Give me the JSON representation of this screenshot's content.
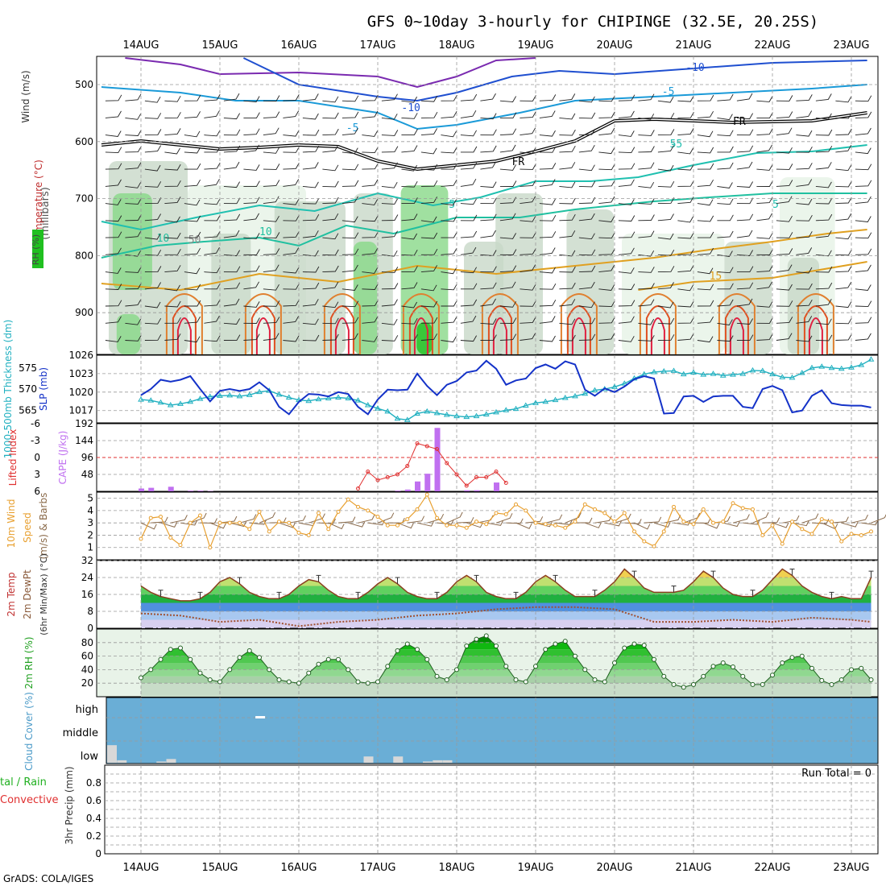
{
  "title": "GFS 0~10day 3-hourly for CHIPINGE (32.5E, 20.25S)",
  "footer": "GrADS: COLA/IGES",
  "dates": [
    "14AUG",
    "15AUG",
    "16AUG",
    "17AUG",
    "18AUG",
    "19AUG",
    "20AUG",
    "21AUG",
    "22AUG",
    "23AUG"
  ],
  "colors": {
    "temp_contour_cold": "#1f4fd0",
    "temp_contour_cool": "#1a9ad8",
    "temp_contour_mild": "#20c0b0",
    "temp_contour_warm": "#e0a020",
    "temp_contour_hot": "#e05020",
    "rh_light": "#e6f3e6",
    "rh_mid": "#88d888",
    "rh_high": "#20c020",
    "slp_line": "#1432c8",
    "thickness_line": "#20b0c0",
    "cape_bar": "#c070f0",
    "lifted_index_line": "#e03030",
    "wind_speed_line": "#e8a030",
    "barb_color": "#8a6a4a",
    "cloud_bg": "#6aaed6",
    "cloud_gray": "#d8d8d8"
  },
  "panels": {
    "upper": {
      "ylabel_wind": "Wind (m/s)",
      "ylabel_temp": "Temperature (°C)",
      "ylabel_rh": "RH (%)",
      "ylabel_units": "(millibars)",
      "yticks": [
        "500",
        "600",
        "700",
        "800",
        "900"
      ],
      "contour_labels": [
        "-10",
        "-10",
        "-5",
        "-5",
        "-5",
        "5",
        "5",
        "10",
        "15",
        "FR",
        "FR",
        "50",
        "5",
        "10"
      ]
    },
    "slp": {
      "ylabel_left": "1000-500mb Thickness (dm)",
      "ylabel_right": "SLP (mb)",
      "left_ticks": [
        "575",
        "570",
        "565"
      ],
      "right_ticks": [
        "1026",
        "1023",
        "1020",
        "1017"
      ]
    },
    "cape": {
      "ylabel_left": "Lifted Index",
      "ylabel_right": "CAPE (J/kg)",
      "left_ticks": [
        "-6",
        "-3",
        "0",
        "3",
        "6"
      ],
      "right_ticks": [
        "192",
        "144",
        "96",
        "48"
      ]
    },
    "wind10m": {
      "ylabel": "10m Wind Speed (m/s) & Barbs",
      "ylabel_lines": [
        "10m Wind",
        "Speed",
        "(m/s) & Barbs"
      ],
      "yticks": [
        "5",
        "4",
        "3",
        "2",
        "1"
      ]
    },
    "temp2m": {
      "ylabel_lines": [
        "2m Temp",
        "2m DewPt",
        "(6hr Min/Max) (°C)"
      ],
      "yticks": [
        "32",
        "24",
        "16",
        "8",
        "0"
      ]
    },
    "rh2m": {
      "ylabel": "2m RH (%)",
      "yticks": [
        "80",
        "60",
        "40",
        "20"
      ]
    },
    "cloud": {
      "ylabel": "Cloud Cover (%)",
      "levels": [
        "high",
        "middle",
        "low"
      ]
    },
    "precip": {
      "ylabel_left_green": "tal / Rain",
      "ylabel_left_red": "Convective",
      "ylabel": "3hr Precip (mm)",
      "yticks": [
        "0.8",
        "0.6",
        "0.4",
        "0.2",
        "0"
      ],
      "run_total": "Run Total = 0"
    }
  },
  "chart_data": [
    {
      "type": "line",
      "name": "SLP (mb)",
      "x_days": [
        0.0,
        0.125,
        0.25,
        0.375,
        0.5,
        0.625,
        0.75,
        0.875,
        1.0,
        1.125,
        1.25,
        1.375,
        1.5,
        1.625,
        1.75,
        1.875,
        2.0,
        2.125,
        2.25,
        2.375,
        2.5,
        2.625,
        2.75,
        2.875,
        3.0,
        3.125,
        3.25,
        3.375,
        3.5,
        3.625,
        3.75,
        3.875,
        4.0,
        4.125,
        4.25,
        4.375,
        4.5,
        4.625,
        4.75,
        4.875,
        5.0,
        5.125,
        5.25,
        5.375,
        5.5,
        5.625,
        5.75,
        5.875,
        6.0,
        6.125,
        6.25,
        6.375,
        6.5,
        6.625,
        6.75,
        6.875,
        7.0,
        7.125,
        7.25,
        7.375,
        7.5,
        7.625,
        7.75,
        7.875,
        8.0,
        8.125,
        8.25,
        8.375,
        8.5,
        8.625,
        8.75,
        8.875,
        9.0,
        9.125,
        9.25
      ],
      "values": [
        1019.5,
        1020.5,
        1022.0,
        1021.7,
        1022.0,
        1022.6,
        1020.5,
        1018.5,
        1020.2,
        1020.5,
        1020.2,
        1020.5,
        1021.6,
        1020.3,
        1017.6,
        1016.4,
        1018.4,
        1019.7,
        1019.6,
        1019.3,
        1020.0,
        1019.7,
        1017.6,
        1016.4,
        1018.8,
        1020.4,
        1020.3,
        1020.4,
        1023.0,
        1021.0,
        1019.5,
        1021.2,
        1021.8,
        1023.2,
        1023.5,
        1025.1,
        1023.8,
        1021.2,
        1021.9,
        1022.2,
        1023.9,
        1024.5,
        1023.8,
        1025.0,
        1024.5,
        1020.4,
        1019.4,
        1020.6,
        1020.0,
        1020.9,
        1022.1,
        1022.6,
        1022.2,
        1016.5,
        1016.6,
        1019.3,
        1019.4,
        1018.4,
        1019.3,
        1019.4,
        1019.4,
        1017.6,
        1017.4,
        1020.5,
        1021.0,
        1020.3,
        1016.7,
        1017.0,
        1019.4,
        1020.3,
        1018.2,
        1017.9,
        1017.8,
        1017.8,
        1017.5
      ],
      "ylim": [
        1015,
        1026
      ]
    },
    {
      "type": "line",
      "name": "1000-500mb Thickness (dm)",
      "x_days": [
        0.0,
        0.125,
        0.25,
        0.375,
        0.5,
        0.625,
        0.75,
        0.875,
        1.0,
        1.125,
        1.25,
        1.375,
        1.5,
        1.625,
        1.75,
        1.875,
        2.0,
        2.125,
        2.25,
        2.375,
        2.5,
        2.625,
        2.75,
        2.875,
        3.0,
        3.125,
        3.25,
        3.375,
        3.5,
        3.625,
        3.75,
        3.875,
        4.0,
        4.125,
        4.25,
        4.375,
        4.5,
        4.625,
        4.75,
        4.875,
        5.0,
        5.125,
        5.25,
        5.375,
        5.5,
        5.625,
        5.75,
        5.875,
        6.0,
        6.125,
        6.25,
        6.375,
        6.5,
        6.625,
        6.75,
        6.875,
        7.0,
        7.125,
        7.25,
        7.375,
        7.5,
        7.625,
        7.75,
        7.875,
        8.0,
        8.125,
        8.25,
        8.375,
        8.5,
        8.625,
        8.75,
        8.875,
        9.0,
        9.125,
        9.25
      ],
      "values": [
        567.5,
        567.3,
        566.8,
        566.2,
        566.5,
        567.0,
        567.7,
        568.2,
        568.4,
        568.5,
        568.3,
        568.6,
        569.3,
        569.6,
        568.7,
        568.0,
        567.4,
        567.2,
        567.6,
        567.8,
        568.0,
        567.8,
        567.3,
        566.2,
        565.4,
        564.7,
        563.0,
        562.7,
        564.2,
        564.7,
        564.3,
        563.9,
        563.6,
        563.4,
        563.6,
        564.0,
        564.5,
        565.0,
        565.3,
        566.1,
        566.7,
        567.0,
        567.4,
        567.9,
        568.3,
        568.9,
        569.7,
        570.0,
        570.5,
        571.3,
        572.5,
        573.5,
        574.0,
        574.2,
        574.3,
        573.5,
        573.9,
        573.4,
        573.6,
        573.2,
        573.4,
        573.6,
        574.4,
        574.3,
        573.5,
        572.8,
        572.7,
        573.8,
        575.0,
        575.3,
        575.0,
        574.8,
        575.1,
        575.7,
        577.0
      ],
      "ylim": [
        562,
        578
      ]
    },
    {
      "type": "bar",
      "name": "CAPE (J/kg)",
      "x_days": [
        0.0,
        0.125,
        0.375,
        0.625,
        0.75,
        0.875,
        3.25,
        3.375,
        3.5,
        3.625,
        3.75,
        4.125,
        4.25,
        4.5
      ],
      "values": [
        8,
        10,
        13,
        2,
        2,
        1,
        2,
        5,
        28,
        50,
        180,
        3,
        3,
        25
      ],
      "ylim": [
        0,
        192
      ]
    },
    {
      "type": "line",
      "name": "Lifted Index",
      "x_days": [
        2.75,
        2.875,
        3.0,
        3.125,
        3.25,
        3.375,
        3.5,
        3.625,
        3.75,
        3.875,
        4.0,
        4.125,
        4.25,
        4.375,
        4.5,
        4.625
      ],
      "values": [
        5.5,
        2.5,
        4.0,
        3.5,
        3.0,
        1.5,
        -2.5,
        -2.0,
        -1.5,
        1.0,
        3.0,
        5.0,
        3.5,
        3.5,
        2.5,
        4.5
      ],
      "ylim": [
        6,
        -6
      ]
    },
    {
      "type": "line",
      "name": "10m Wind Speed (m/s)",
      "x_days": [
        0.0,
        0.125,
        0.25,
        0.375,
        0.5,
        0.625,
        0.75,
        0.875,
        1.0,
        1.125,
        1.25,
        1.375,
        1.5,
        1.625,
        1.75,
        1.875,
        2.0,
        2.125,
        2.25,
        2.375,
        2.5,
        2.625,
        2.75,
        2.875,
        3.0,
        3.125,
        3.25,
        3.375,
        3.5,
        3.625,
        3.75,
        3.875,
        4.0,
        4.125,
        4.25,
        4.375,
        4.5,
        4.625,
        4.75,
        4.875,
        5.0,
        5.125,
        5.25,
        5.375,
        5.5,
        5.625,
        5.75,
        5.875,
        6.0,
        6.125,
        6.25,
        6.375,
        6.5,
        6.625,
        6.75,
        6.875,
        7.0,
        7.125,
        7.25,
        7.375,
        7.5,
        7.625,
        7.75,
        7.875,
        8.0,
        8.125,
        8.25,
        8.375,
        8.5,
        8.625,
        8.75,
        8.875,
        9.0,
        9.125,
        9.25
      ],
      "values": [
        1.7,
        3.4,
        3.5,
        1.8,
        1.2,
        3.0,
        3.6,
        1.0,
        3.0,
        3.0,
        3.0,
        2.5,
        3.9,
        2.3,
        3.1,
        3.0,
        2.2,
        2.0,
        3.8,
        2.5,
        3.9,
        4.9,
        4.3,
        4.0,
        3.5,
        2.8,
        2.8,
        3.3,
        4.1,
        5.3,
        3.4,
        2.8,
        2.8,
        2.6,
        3.1,
        2.9,
        3.8,
        3.7,
        4.5,
        4.0,
        3.0,
        2.9,
        2.8,
        2.6,
        3.1,
        4.5,
        4.1,
        3.8,
        3.1,
        3.8,
        2.3,
        1.5,
        1.1,
        2.3,
        4.3,
        3.1,
        2.9,
        4.1,
        3.0,
        3.1,
        4.6,
        4.2,
        4.1,
        2.0,
        2.8,
        1.3,
        3.1,
        2.5,
        2.1,
        3.3,
        3.1,
        1.5,
        2.1,
        2.0,
        2.3
      ],
      "ylim": [
        0,
        5.5
      ]
    },
    {
      "type": "area",
      "name": "2m Temp (°C)",
      "x_days": [
        0.0,
        0.125,
        0.25,
        0.375,
        0.5,
        0.625,
        0.75,
        0.875,
        1.0,
        1.125,
        1.25,
        1.375,
        1.5,
        1.625,
        1.75,
        1.875,
        2.0,
        2.125,
        2.25,
        2.375,
        2.5,
        2.625,
        2.75,
        2.875,
        3.0,
        3.125,
        3.25,
        3.375,
        3.5,
        3.625,
        3.75,
        3.875,
        4.0,
        4.125,
        4.25,
        4.375,
        4.5,
        4.625,
        4.75,
        4.875,
        5.0,
        5.125,
        5.25,
        5.375,
        5.5,
        5.625,
        5.75,
        5.875,
        6.0,
        6.125,
        6.25,
        6.375,
        6.5,
        6.625,
        6.75,
        6.875,
        7.0,
        7.125,
        7.25,
        7.375,
        7.5,
        7.625,
        7.75,
        7.875,
        8.0,
        8.125,
        8.25,
        8.375,
        8.5,
        8.625,
        8.75,
        8.875,
        9.0,
        9.125,
        9.25
      ],
      "values": [
        20,
        17,
        15,
        14,
        13,
        13,
        14,
        17,
        22,
        24,
        21,
        17,
        15,
        14,
        14,
        16,
        20,
        23,
        22,
        18,
        15,
        14,
        14,
        17,
        21,
        24,
        21,
        17,
        15,
        14,
        14,
        17,
        22,
        25,
        22,
        17,
        15,
        14,
        14,
        17,
        22,
        25,
        22,
        18,
        15,
        15,
        15,
        18,
        22,
        28,
        24,
        19,
        17,
        17,
        17,
        18,
        22,
        27,
        24,
        19,
        16,
        15,
        15,
        18,
        23,
        28,
        25,
        20,
        17,
        15,
        14,
        15,
        14,
        14,
        24
      ],
      "ylim": [
        0,
        32
      ]
    },
    {
      "type": "line",
      "name": "2m DewPt (°C)",
      "x_days": [
        0.0,
        0.5,
        1.0,
        1.5,
        2.0,
        2.5,
        3.0,
        3.5,
        4.0,
        4.5,
        5.0,
        5.5,
        6.0,
        6.5,
        7.0,
        7.5,
        8.0,
        8.5,
        9.0,
        9.25
      ],
      "values": [
        7,
        6,
        3,
        4,
        1,
        3,
        4,
        6,
        7,
        9,
        10,
        10,
        9,
        3,
        3,
        4,
        3,
        5,
        4,
        3
      ],
      "ylim": [
        0,
        32
      ]
    },
    {
      "type": "area",
      "name": "2m RH (%)",
      "x_days": [
        0.0,
        0.125,
        0.25,
        0.375,
        0.5,
        0.625,
        0.75,
        0.875,
        1.0,
        1.125,
        1.25,
        1.375,
        1.5,
        1.625,
        1.75,
        1.875,
        2.0,
        2.125,
        2.25,
        2.375,
        2.5,
        2.625,
        2.75,
        2.875,
        3.0,
        3.125,
        3.25,
        3.375,
        3.5,
        3.625,
        3.75,
        3.875,
        4.0,
        4.125,
        4.25,
        4.375,
        4.5,
        4.625,
        4.75,
        4.875,
        5.0,
        5.125,
        5.25,
        5.375,
        5.5,
        5.625,
        5.75,
        5.875,
        6.0,
        6.125,
        6.25,
        6.375,
        6.5,
        6.625,
        6.75,
        6.875,
        7.0,
        7.125,
        7.25,
        7.375,
        7.5,
        7.625,
        7.75,
        7.875,
        8.0,
        8.125,
        8.25,
        8.375,
        8.5,
        8.625,
        8.75,
        8.875,
        9.0,
        9.125,
        9.25
      ],
      "values": [
        28,
        40,
        55,
        70,
        72,
        55,
        35,
        25,
        22,
        40,
        58,
        68,
        58,
        40,
        25,
        22,
        20,
        35,
        48,
        55,
        55,
        40,
        22,
        20,
        22,
        45,
        68,
        78,
        70,
        55,
        30,
        25,
        40,
        75,
        85,
        90,
        75,
        45,
        25,
        22,
        45,
        70,
        78,
        82,
        60,
        40,
        25,
        22,
        50,
        72,
        78,
        76,
        55,
        30,
        18,
        14,
        18,
        30,
        45,
        50,
        44,
        30,
        18,
        18,
        32,
        50,
        58,
        60,
        42,
        24,
        18,
        25,
        40,
        42,
        25
      ],
      "ylim": [
        0,
        100
      ]
    },
    {
      "type": "bar",
      "name": "Cloud Cover low (%)",
      "x_days": [
        0.0,
        0.125,
        0.625,
        0.75,
        3.25,
        3.625,
        4.0,
        4.125,
        4.25
      ],
      "values": [
        28,
        4,
        2,
        6,
        10,
        10,
        2,
        4,
        4
      ],
      "ylim": [
        0,
        100
      ]
    },
    {
      "type": "bar",
      "name": "3hr Precip (mm)",
      "x_days": [],
      "values": [],
      "ylim": [
        0,
        1.0
      ]
    }
  ]
}
